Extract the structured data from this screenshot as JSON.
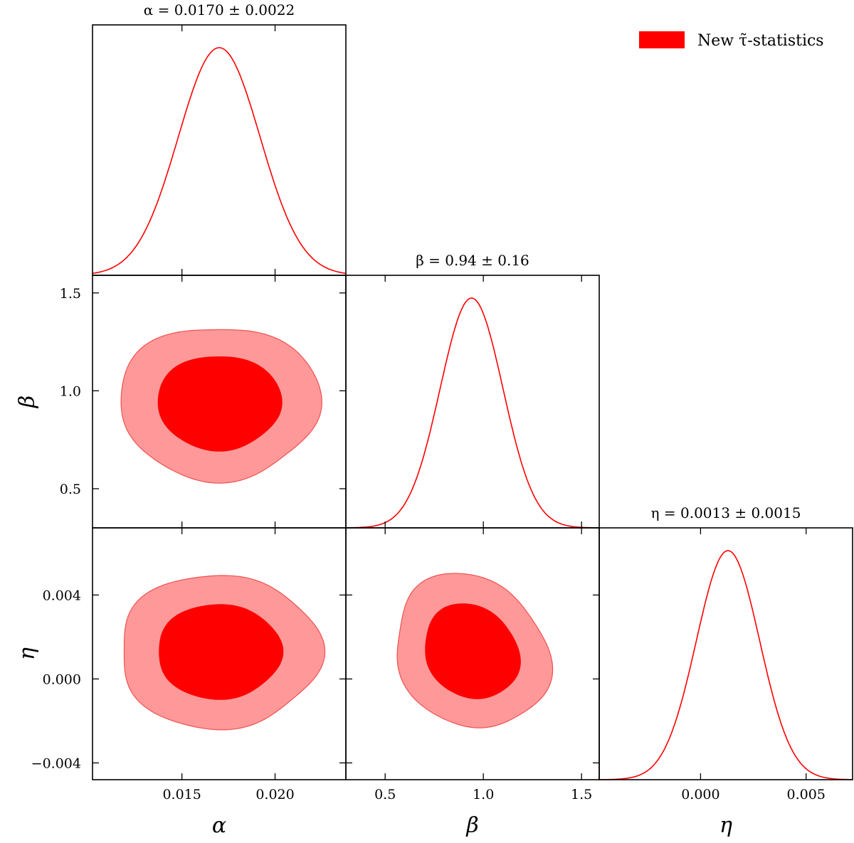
{
  "chart_data": {
    "type": "corner",
    "params": [
      {
        "key": "alpha",
        "label": "α",
        "title": "α = 0.0170 ± 0.0022",
        "mean": 0.017,
        "sigma": 0.0022,
        "range": [
          0.0102,
          0.0238
        ],
        "ticks": [
          0.015,
          0.02
        ],
        "tick_labels": [
          "0.015",
          "0.020"
        ]
      },
      {
        "key": "beta",
        "label": "β",
        "title": "β = 0.94 ± 0.16",
        "mean": 0.94,
        "sigma": 0.16,
        "range": [
          0.3,
          1.59
        ],
        "ticks": [
          0.5,
          1.0,
          1.5
        ],
        "tick_labels": [
          "0.5",
          "1.0",
          "1.5"
        ]
      },
      {
        "key": "eta",
        "label": "η",
        "title": "η = 0.0013 ± 0.0015",
        "mean": 0.0013,
        "sigma": 0.0015,
        "range": [
          -0.0048,
          0.0072
        ],
        "ticks": [
          0.0,
          0.005
        ],
        "tick_labels": [
          "0.000",
          "0.005"
        ]
      }
    ],
    "y_ticks": {
      "beta": {
        "ticks": [
          0.5,
          1.0,
          1.5
        ],
        "labels": [
          "0.5",
          "1.0",
          "1.5"
        ]
      },
      "eta": {
        "ticks": [
          -0.004,
          0.0,
          0.004
        ],
        "labels": [
          "−0.004",
          "0.000",
          "0.004"
        ]
      }
    },
    "contours_2d": [
      {
        "x": "alpha",
        "y": "beta",
        "center": [
          0.017,
          0.94
        ],
        "levels": [
          "68%",
          "95%"
        ]
      },
      {
        "x": "alpha",
        "y": "eta",
        "center": [
          0.017,
          0.0013
        ],
        "levels": [
          "68%",
          "95%"
        ]
      },
      {
        "x": "beta",
        "y": "eta",
        "center": [
          0.94,
          0.0013
        ],
        "levels": [
          "68%",
          "95%"
        ],
        "correlation": -0.15
      }
    ],
    "legend": {
      "label": "New τ̃-statistics",
      "placement": "top-right"
    },
    "colors": {
      "line": "#ff0000",
      "fill_inner": "#ff0000",
      "fill_outer": "#ff9999",
      "outer_edge": "#f05050"
    }
  }
}
